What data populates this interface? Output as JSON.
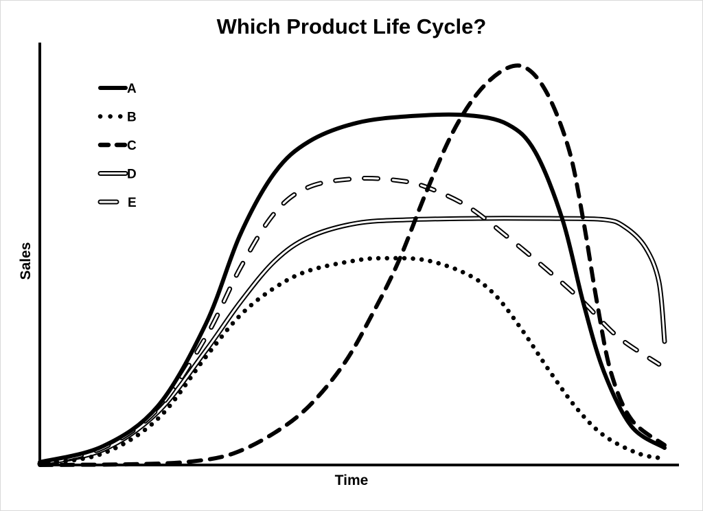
{
  "chart_data": {
    "type": "line",
    "title": "Which Product Life Cycle?",
    "xlabel": "Time",
    "ylabel": "Sales",
    "xlim": [
      0,
      100
    ],
    "ylim": [
      0,
      100
    ],
    "grid": false,
    "ticks_shown": false,
    "legend_position": "top-left",
    "series": [
      {
        "name": "A",
        "style": "solid-thick",
        "x": [
          0,
          10.1,
          18.9,
          26.6,
          32.1,
          37.6,
          43.1,
          50.8,
          59.6,
          68.4,
          74.9,
          79.3,
          83.7,
          87.0,
          90.3,
          94.7,
          100
        ],
        "y": [
          0.7,
          4.7,
          14.8,
          35.5,
          57.9,
          73.4,
          81.2,
          85.9,
          87.6,
          87.8,
          85.5,
          78.6,
          61.4,
          40.7,
          23.4,
          9.7,
          4.3
        ]
      },
      {
        "name": "B",
        "style": "dotted",
        "x": [
          0,
          10.1,
          18.9,
          26.6,
          32.1,
          37.6,
          43.1,
          50.8,
          55.2,
          61.8,
          68.4,
          72.8,
          77.1,
          81.5,
          85.9,
          90.3,
          95.8,
          100
        ],
        "y": [
          0.2,
          2.9,
          11.6,
          27.2,
          37.6,
          44.5,
          48.8,
          51.4,
          51.9,
          51.4,
          47.9,
          42.8,
          34.1,
          23.8,
          14.3,
          7.4,
          2.9,
          1.6
        ]
      },
      {
        "name": "C",
        "style": "dashed-thick",
        "x": [
          0,
          15.6,
          24.4,
          31.0,
          37.6,
          43.1,
          48.6,
          53.0,
          57.4,
          61.8,
          66.2,
          70.5,
          74.9,
          78.2,
          81.5,
          84.8,
          87.0,
          89.2,
          91.4,
          94.7,
          100
        ],
        "y": [
          0,
          0.2,
          0.9,
          2.9,
          8.1,
          14.8,
          25.2,
          37.2,
          51.0,
          68.3,
          83.8,
          94.1,
          99.7,
          99.3,
          92.4,
          78.6,
          61.4,
          40.7,
          23.4,
          11.4,
          5.0
        ]
      },
      {
        "name": "D",
        "style": "double-line",
        "x": [
          0,
          10.1,
          18.9,
          26.6,
          32.1,
          37.6,
          43.1,
          50.8,
          59.6,
          70.5,
          81.5,
          90.3,
          93.6,
          96.9,
          99.1,
          100
        ],
        "y": [
          0.3,
          3.8,
          13.3,
          28.8,
          40.9,
          51.2,
          57.2,
          60.7,
          61.6,
          61.9,
          61.9,
          61.6,
          59.8,
          54.7,
          46.0,
          31.0
        ]
      },
      {
        "name": "E",
        "style": "outlined-dash",
        "x": [
          0,
          10.1,
          18.9,
          26.6,
          32.1,
          37.6,
          43.1,
          50.8,
          57.4,
          61.8,
          68.4,
          74.9,
          81.5,
          87.0,
          92.5,
          99.1
        ],
        "y": [
          0.3,
          4.3,
          14.1,
          32.2,
          49.5,
          63.3,
          69.8,
          71.9,
          71.4,
          69.8,
          65.0,
          57.2,
          48.6,
          40.9,
          32.2,
          25.3
        ]
      }
    ]
  }
}
